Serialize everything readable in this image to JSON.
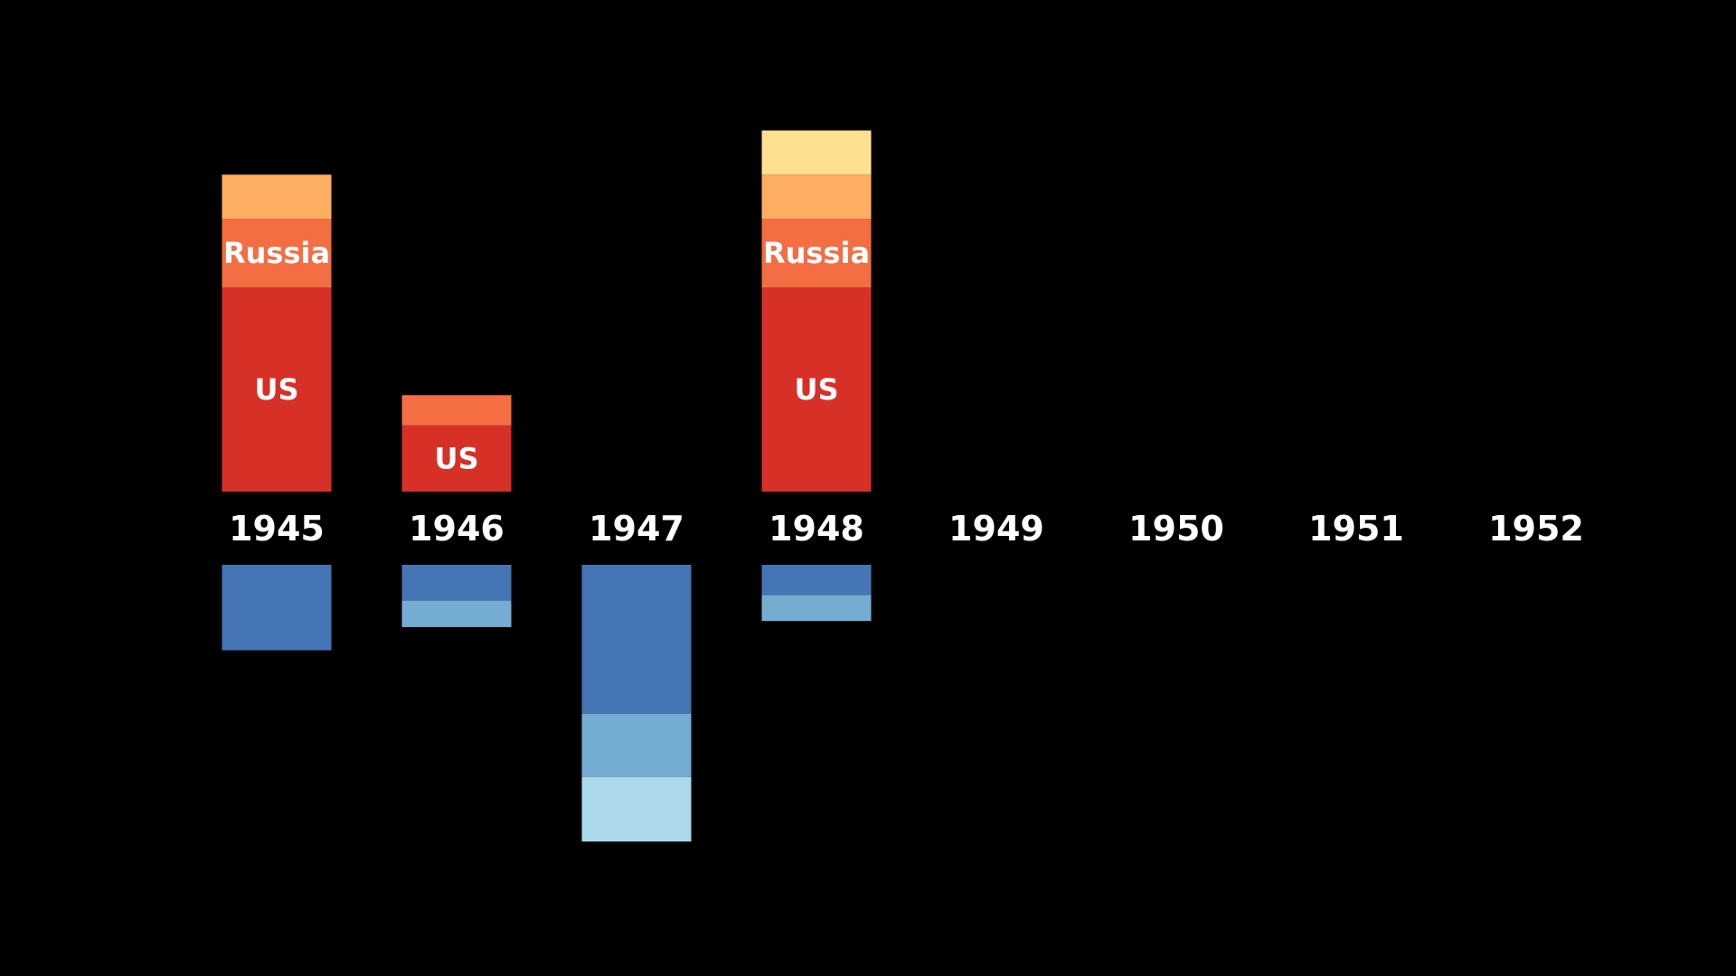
{
  "chart_data": {
    "type": "bar",
    "stacked": "diverging",
    "title": "",
    "xlabel": "",
    "ylabel": "",
    "grid": false,
    "legend": "none",
    "background": "#000000",
    "categories": [
      "1945",
      "1946",
      "1947",
      "1948",
      "1949",
      "1950",
      "1951",
      "1952"
    ],
    "units_note": "values in segment units; baseline-relative heights",
    "series_above": [
      {
        "key": "warm1",
        "label": "US",
        "color": "#d73027",
        "values": [
          3.7,
          1.2,
          0,
          3.7,
          0,
          0,
          0,
          0
        ]
      },
      {
        "key": "warm2",
        "label": "Russia",
        "color": "#f46d43",
        "values": [
          1.25,
          0.55,
          0,
          1.25,
          0,
          0,
          0,
          0
        ]
      },
      {
        "key": "warm3",
        "label": "",
        "color": "#fdae61",
        "values": [
          0.8,
          0,
          0,
          0.8,
          0,
          0,
          0,
          0
        ]
      },
      {
        "key": "warm4",
        "label": "",
        "color": "#fee090",
        "values": [
          0,
          0,
          0,
          0.8,
          0,
          0,
          0,
          0
        ]
      }
    ],
    "series_below": [
      {
        "key": "cool1",
        "label": "",
        "color": "#4575b4",
        "values": [
          1.55,
          0.65,
          2.7,
          0.55,
          0,
          0,
          0,
          0
        ]
      },
      {
        "key": "cool2",
        "label": "",
        "color": "#74add1",
        "values": [
          0,
          0.48,
          1.15,
          0.47,
          0,
          0,
          0,
          0
        ]
      },
      {
        "key": "cool3",
        "label": "",
        "color": "#abd9e9",
        "values": [
          0,
          0,
          1.17,
          0,
          0,
          0,
          0,
          0
        ]
      }
    ]
  }
}
